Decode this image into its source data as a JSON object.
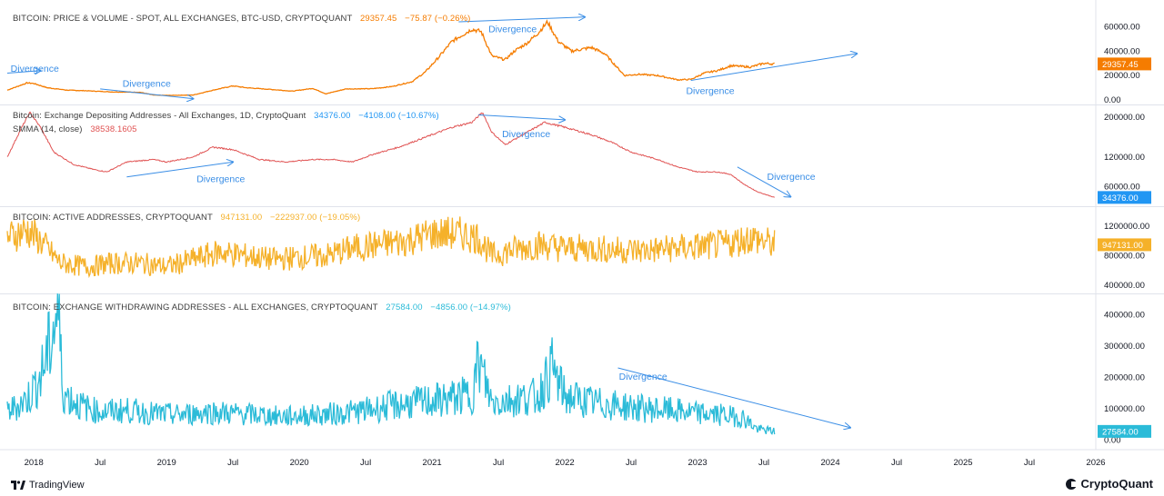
{
  "chart_data": [
    {
      "type": "line",
      "title": "BITCOIN: PRICE & VOLUME - SPOT, ALL EXCHANGES, BTC-USD, CRYPTOQUANT",
      "last": "29357.45",
      "change": "−75.87 (−0.26%)",
      "y_ticks": [
        "60000.00",
        "40000.00",
        "20000.00",
        "0.00"
      ],
      "ylim": [
        0,
        70000
      ],
      "badge": "29357.45",
      "color": "#f57c00",
      "series": [
        {
          "values": [
            [
              2017.8,
              8000
            ],
            [
              2017.95,
              14000
            ],
            [
              2018.0,
              13500
            ],
            [
              2018.1,
              10000
            ],
            [
              2018.25,
              8000
            ],
            [
              2018.4,
              7500
            ],
            [
              2018.6,
              6500
            ],
            [
              2018.8,
              6300
            ],
            [
              2018.9,
              4000
            ],
            [
              2019.0,
              3700
            ],
            [
              2019.2,
              4000
            ],
            [
              2019.35,
              8000
            ],
            [
              2019.5,
              11500
            ],
            [
              2019.6,
              10000
            ],
            [
              2019.8,
              8500
            ],
            [
              2019.95,
              7200
            ],
            [
              2020.1,
              9500
            ],
            [
              2020.2,
              5000
            ],
            [
              2020.35,
              9000
            ],
            [
              2020.55,
              9200
            ],
            [
              2020.7,
              11000
            ],
            [
              2020.85,
              15000
            ],
            [
              2020.95,
              23000
            ],
            [
              2021.05,
              35000
            ],
            [
              2021.15,
              48000
            ],
            [
              2021.3,
              58000
            ],
            [
              2021.37,
              56000
            ],
            [
              2021.45,
              36000
            ],
            [
              2021.55,
              33000
            ],
            [
              2021.62,
              40000
            ],
            [
              2021.72,
              47000
            ],
            [
              2021.8,
              55000
            ],
            [
              2021.87,
              64000
            ],
            [
              2021.95,
              48000
            ],
            [
              2022.05,
              40000
            ],
            [
              2022.2,
              43000
            ],
            [
              2022.3,
              38000
            ],
            [
              2022.45,
              20000
            ],
            [
              2022.55,
              21000
            ],
            [
              2022.7,
              20000
            ],
            [
              2022.85,
              16500
            ],
            [
              2022.95,
              16800
            ],
            [
              2023.05,
              22000
            ],
            [
              2023.15,
              24000
            ],
            [
              2023.25,
              28000
            ],
            [
              2023.4,
              27000
            ],
            [
              2023.5,
              30000
            ],
            [
              2023.58,
              29500
            ]
          ]
        }
      ]
    },
    {
      "type": "line",
      "title": "Bitcoin: Exchange Depositing Addresses - All Exchanges, 1D, CryptoQuant",
      "last": "34376.00",
      "change": "−4108.00 (−10.67%)",
      "smma_label": "SMMA (14, close)",
      "smma_value": "38538.1605",
      "y_ticks": [
        "200000.00",
        "120000.00",
        "60000.00"
      ],
      "ylim": [
        30000,
        215000
      ],
      "badge": "34376.00",
      "color": "#e05252",
      "series": [
        {
          "values": [
            [
              2017.8,
              120000
            ],
            [
              2017.9,
              175000
            ],
            [
              2017.97,
              210000
            ],
            [
              2018.05,
              180000
            ],
            [
              2018.15,
              130000
            ],
            [
              2018.3,
              105000
            ],
            [
              2018.45,
              95000
            ],
            [
              2018.55,
              90000
            ],
            [
              2018.7,
              110000
            ],
            [
              2018.9,
              115000
            ],
            [
              2019.0,
              110000
            ],
            [
              2019.2,
              120000
            ],
            [
              2019.35,
              140000
            ],
            [
              2019.5,
              135000
            ],
            [
              2019.7,
              115000
            ],
            [
              2019.9,
              110000
            ],
            [
              2020.1,
              115000
            ],
            [
              2020.25,
              115000
            ],
            [
              2020.4,
              110000
            ],
            [
              2020.55,
              125000
            ],
            [
              2020.75,
              140000
            ],
            [
              2020.9,
              155000
            ],
            [
              2021.0,
              165000
            ],
            [
              2021.15,
              180000
            ],
            [
              2021.3,
              190000
            ],
            [
              2021.38,
              210000
            ],
            [
              2021.45,
              170000
            ],
            [
              2021.55,
              145000
            ],
            [
              2021.65,
              160000
            ],
            [
              2021.75,
              175000
            ],
            [
              2021.85,
              190000
            ],
            [
              2022.0,
              180000
            ],
            [
              2022.2,
              165000
            ],
            [
              2022.35,
              150000
            ],
            [
              2022.5,
              130000
            ],
            [
              2022.7,
              115000
            ],
            [
              2022.85,
              100000
            ],
            [
              2023.0,
              90000
            ],
            [
              2023.15,
              90000
            ],
            [
              2023.25,
              85000
            ],
            [
              2023.35,
              65000
            ],
            [
              2023.45,
              50000
            ],
            [
              2023.58,
              38500
            ]
          ]
        }
      ]
    },
    {
      "type": "line",
      "title": "BITCOIN: ACTIVE ADDRESSES, CRYPTOQUANT",
      "last": "947131.00",
      "change": "−222937.00 (−19.05%)",
      "y_ticks": [
        "1200000.00",
        "800000.00",
        "400000.00"
      ],
      "ylim": [
        350000,
        1400000
      ],
      "badge": "947131.00",
      "color": "#f5b12a",
      "series": [
        {
          "values": [
            [
              2017.8,
              1050000
            ],
            [
              2017.95,
              1150000
            ],
            [
              2018.05,
              1000000
            ],
            [
              2018.2,
              700000
            ],
            [
              2018.4,
              650000
            ],
            [
              2018.6,
              700000
            ],
            [
              2018.8,
              700000
            ],
            [
              2019.0,
              650000
            ],
            [
              2019.2,
              750000
            ],
            [
              2019.4,
              850000
            ],
            [
              2019.6,
              800000
            ],
            [
              2019.8,
              750000
            ],
            [
              2020.0,
              780000
            ],
            [
              2020.2,
              800000
            ],
            [
              2020.4,
              900000
            ],
            [
              2020.6,
              950000
            ],
            [
              2020.8,
              1000000
            ],
            [
              2021.0,
              1100000
            ],
            [
              2021.2,
              1100000
            ],
            [
              2021.35,
              1050000
            ],
            [
              2021.45,
              800000
            ],
            [
              2021.6,
              880000
            ],
            [
              2021.8,
              950000
            ],
            [
              2022.0,
              900000
            ],
            [
              2022.2,
              900000
            ],
            [
              2022.4,
              880000
            ],
            [
              2022.6,
              870000
            ],
            [
              2022.8,
              900000
            ],
            [
              2023.0,
              920000
            ],
            [
              2023.2,
              950000
            ],
            [
              2023.4,
              1050000
            ],
            [
              2023.58,
              950000
            ]
          ]
        }
      ]
    },
    {
      "type": "line",
      "title": "BITCOIN: EXCHANGE WITHDRAWING ADDRESSES - ALL EXCHANGES, CRYPTOQUANT",
      "last": "27584.00",
      "change": "−4856.00 (−14.97%)",
      "y_ticks": [
        "400000.00",
        "300000.00",
        "200000.00",
        "100000.00",
        "0.00"
      ],
      "ylim": [
        -10000,
        450000
      ],
      "badge": "27584.00",
      "color": "#2bbbd8",
      "series": [
        {
          "values": [
            [
              2017.8,
              90000
            ],
            [
              2017.95,
              130000
            ],
            [
              2018.05,
              200000
            ],
            [
              2018.12,
              300000
            ],
            [
              2018.18,
              420000
            ],
            [
              2018.22,
              150000
            ],
            [
              2018.35,
              110000
            ],
            [
              2018.5,
              90000
            ],
            [
              2018.7,
              95000
            ],
            [
              2018.9,
              85000
            ],
            [
              2019.1,
              80000
            ],
            [
              2019.3,
              90000
            ],
            [
              2019.5,
              85000
            ],
            [
              2019.7,
              80000
            ],
            [
              2019.9,
              75000
            ],
            [
              2020.1,
              80000
            ],
            [
              2020.3,
              85000
            ],
            [
              2020.5,
              95000
            ],
            [
              2020.7,
              110000
            ],
            [
              2020.9,
              120000
            ],
            [
              2021.1,
              130000
            ],
            [
              2021.3,
              145000
            ],
            [
              2021.35,
              250000
            ],
            [
              2021.45,
              120000
            ],
            [
              2021.6,
              130000
            ],
            [
              2021.8,
              140000
            ],
            [
              2021.9,
              230000
            ],
            [
              2022.0,
              140000
            ],
            [
              2022.2,
              120000
            ],
            [
              2022.4,
              110000
            ],
            [
              2022.6,
              100000
            ],
            [
              2022.8,
              95000
            ],
            [
              2023.0,
              85000
            ],
            [
              2023.2,
              80000
            ],
            [
              2023.35,
              70000
            ],
            [
              2023.45,
              35000
            ],
            [
              2023.58,
              28000
            ]
          ]
        }
      ]
    }
  ],
  "x_ticks": [
    {
      "label": "2018",
      "t": 2018.0
    },
    {
      "label": "Jul",
      "t": 2018.5
    },
    {
      "label": "2019",
      "t": 2019.0
    },
    {
      "label": "Jul",
      "t": 2019.5
    },
    {
      "label": "2020",
      "t": 2020.0
    },
    {
      "label": "Jul",
      "t": 2020.5
    },
    {
      "label": "2021",
      "t": 2021.0
    },
    {
      "label": "Jul",
      "t": 2021.5
    },
    {
      "label": "2022",
      "t": 2022.0
    },
    {
      "label": "Jul",
      "t": 2022.5
    },
    {
      "label": "2023",
      "t": 2023.0
    },
    {
      "label": "Jul",
      "t": 2023.5
    },
    {
      "label": "2024",
      "t": 2024.0
    },
    {
      "label": "Jul",
      "t": 2024.5
    },
    {
      "label": "2025",
      "t": 2025.0
    },
    {
      "label": "Jul",
      "t": 2025.5
    },
    {
      "label": "2026",
      "t": 2026.0
    }
  ],
  "annotations": [
    {
      "panel": 0,
      "label": "Divergence",
      "arrow": [
        [
          2017.8,
          22000
        ],
        [
          2018.05,
          24000
        ]
      ]
    },
    {
      "panel": 0,
      "label": "Divergence",
      "arrow": [
        [
          2018.5,
          9000
        ],
        [
          2019.2,
          1000
        ]
      ]
    },
    {
      "panel": 0,
      "label": "Divergence",
      "arrow": [
        [
          2021.2,
          64000
        ],
        [
          2022.15,
          68000
        ]
      ]
    },
    {
      "panel": 0,
      "label": "Divergence",
      "arrow": [
        [
          2022.95,
          16000
        ],
        [
          2024.2,
          38000
        ]
      ]
    },
    {
      "panel": 1,
      "label": "Divergence",
      "arrow": [
        [
          2018.7,
          80000
        ],
        [
          2019.5,
          110000
        ]
      ]
    },
    {
      "panel": 1,
      "label": "Divergence",
      "arrow": [
        [
          2021.35,
          205000
        ],
        [
          2022.0,
          195000
        ]
      ]
    },
    {
      "panel": 1,
      "label": "Divergence",
      "arrow": [
        [
          2023.3,
          100000
        ],
        [
          2023.7,
          40000
        ]
      ]
    },
    {
      "panel": 3,
      "label": "Divergence",
      "arrow": [
        [
          2022.4,
          230000
        ],
        [
          2024.15,
          40000
        ]
      ]
    }
  ],
  "footer": {
    "left": "TradingView",
    "right": "CryptoQuant"
  }
}
